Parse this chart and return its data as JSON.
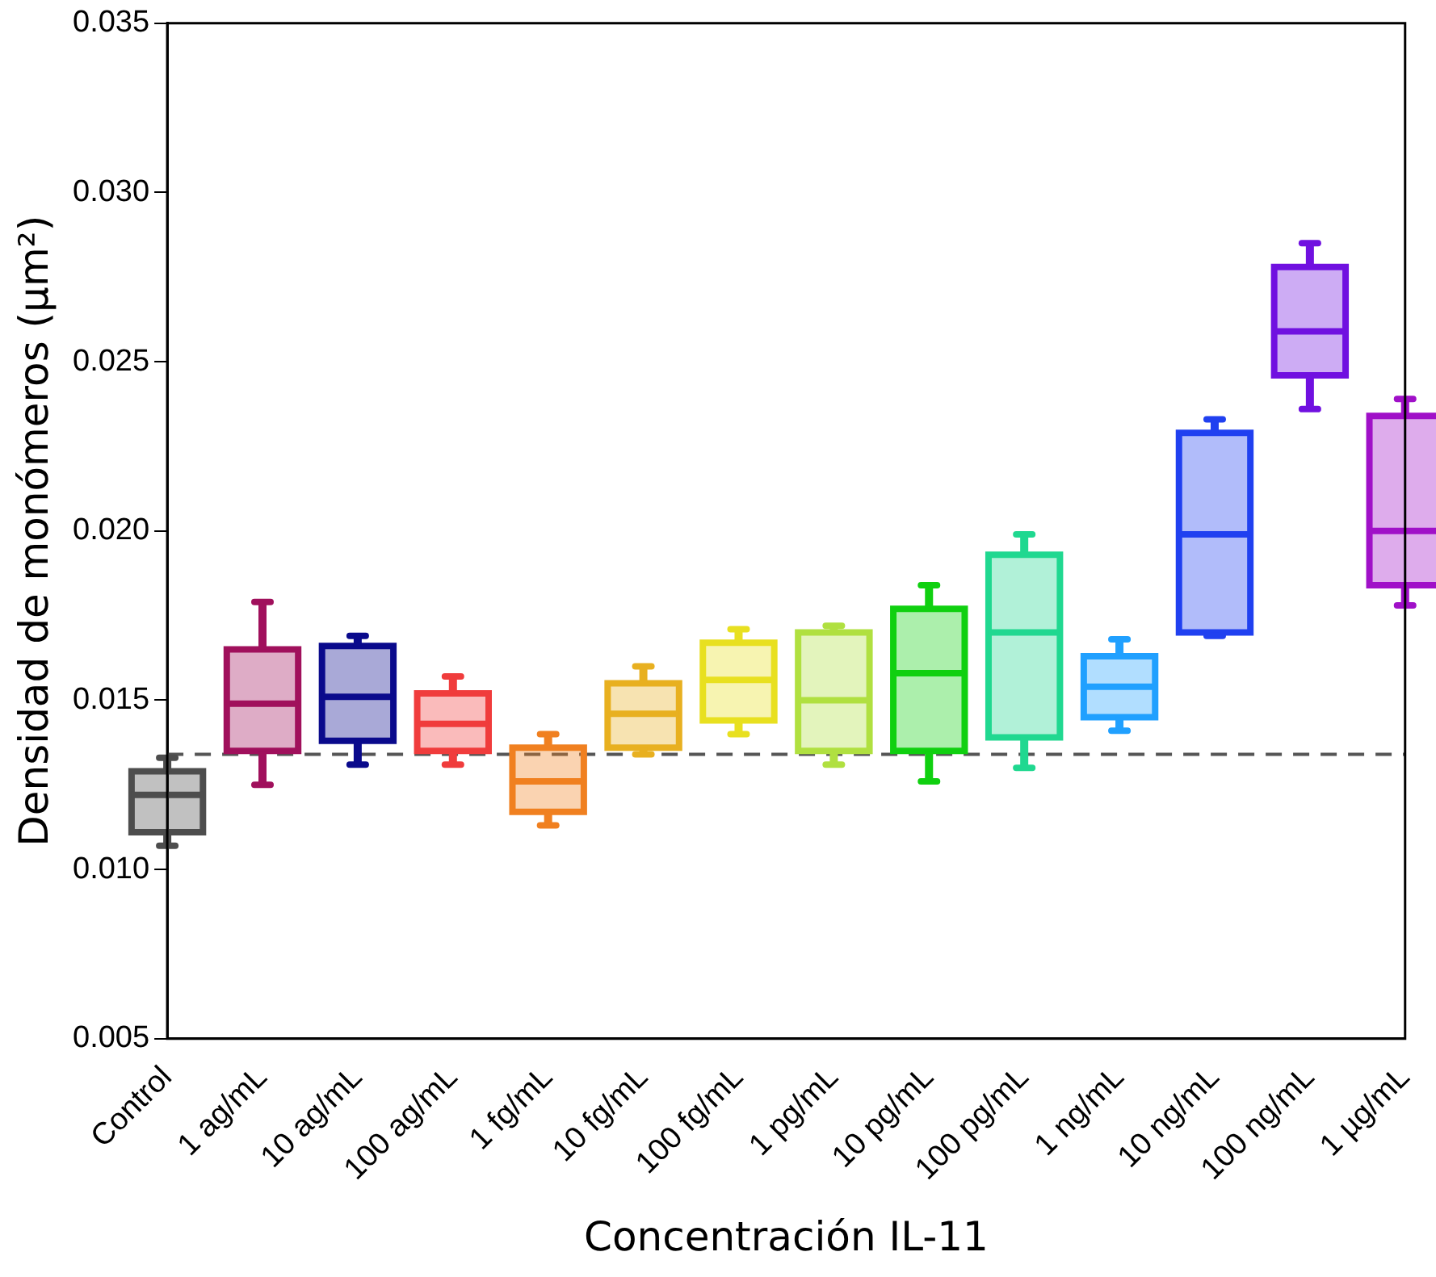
{
  "chart_data": {
    "type": "box",
    "xlabel": "Concentración IL-11",
    "ylabel": "Densidad de monómeros (µm²)",
    "categories": [
      "Control",
      "1 ag/mL",
      "10 ag/mL",
      "100 ag/mL",
      "1 fg/mL",
      "10 fg/mL",
      "100 fg/mL",
      "1 pg/mL",
      "10 pg/mL",
      "100 pg/mL",
      "1 ng/mL",
      "10 ng/mL",
      "100 ng/mL",
      "1 µg/mL"
    ],
    "colors": [
      "#4d4d4d",
      "#a0105c",
      "#0a0a8c",
      "#f03c3c",
      "#f08020",
      "#e8b020",
      "#e8e020",
      "#b0e040",
      "#10d010",
      "#20d890",
      "#20a0ff",
      "#2040f0",
      "#7010e0",
      "#a010c8"
    ],
    "boxes": [
      {
        "low": 0.0107,
        "q1": 0.0111,
        "median": 0.0122,
        "q3": 0.0129,
        "high": 0.0133
      },
      {
        "low": 0.0125,
        "q1": 0.0135,
        "median": 0.0149,
        "q3": 0.0165,
        "high": 0.0179
      },
      {
        "low": 0.0131,
        "q1": 0.0138,
        "median": 0.0151,
        "q3": 0.0166,
        "high": 0.0169
      },
      {
        "low": 0.0131,
        "q1": 0.0135,
        "median": 0.0143,
        "q3": 0.0152,
        "high": 0.0157
      },
      {
        "low": 0.0113,
        "q1": 0.0117,
        "median": 0.0126,
        "q3": 0.0136,
        "high": 0.014
      },
      {
        "low": 0.0134,
        "q1": 0.0136,
        "median": 0.0146,
        "q3": 0.0155,
        "high": 0.016
      },
      {
        "low": 0.014,
        "q1": 0.0144,
        "median": 0.0156,
        "q3": 0.0167,
        "high": 0.0171
      },
      {
        "low": 0.0131,
        "q1": 0.0135,
        "median": 0.015,
        "q3": 0.017,
        "high": 0.0172
      },
      {
        "low": 0.0126,
        "q1": 0.0135,
        "median": 0.0158,
        "q3": 0.0177,
        "high": 0.0184
      },
      {
        "low": 0.013,
        "q1": 0.0139,
        "median": 0.017,
        "q3": 0.0193,
        "high": 0.0199
      },
      {
        "low": 0.0141,
        "q1": 0.0145,
        "median": 0.0154,
        "q3": 0.0163,
        "high": 0.0168
      },
      {
        "low": 0.0169,
        "q1": 0.017,
        "median": 0.0199,
        "q3": 0.0229,
        "high": 0.0233
      },
      {
        "low": 0.0236,
        "q1": 0.0246,
        "median": 0.0259,
        "q3": 0.0278,
        "high": 0.0285
      },
      {
        "low": 0.0178,
        "q1": 0.0184,
        "median": 0.02,
        "q3": 0.0234,
        "high": 0.0239
      }
    ],
    "ylim": [
      0.005,
      0.035
    ],
    "yticks": [
      {
        "value": 0.005,
        "label": "0.005"
      },
      {
        "value": 0.01,
        "label": "0.010"
      },
      {
        "value": 0.015,
        "label": "0.015"
      },
      {
        "value": 0.02,
        "label": "0.020"
      },
      {
        "value": 0.025,
        "label": "0.025"
      },
      {
        "value": 0.03,
        "label": "0.030"
      },
      {
        "value": 0.035,
        "label": "0.035"
      }
    ],
    "ref_lines": [
      {
        "axis": "y",
        "value": 0.0134,
        "color": "#555555",
        "line_style": "dashed"
      }
    ],
    "grid": false,
    "legend": false
  }
}
